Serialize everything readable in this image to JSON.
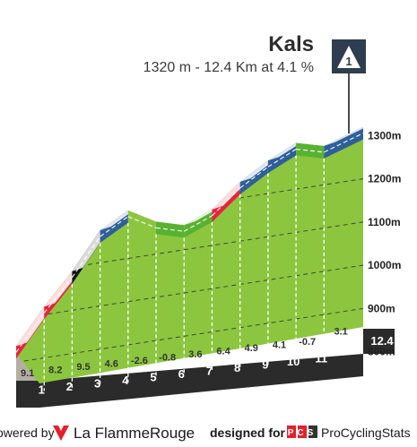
{
  "header": {
    "title": "Kals",
    "subtitle": "1320 m - 12.4 Km at 4.1 %",
    "category_badge": "1"
  },
  "footer": {
    "powered_by": "owered by",
    "brand": "La FlammeRouge",
    "designed_for": "designed for",
    "pcs_badge": "PCS",
    "pcs_name": "ProCyclingStats"
  },
  "colors": {
    "grade_light": "#8cc63f",
    "grade_moderate": "#2f5f99",
    "grade_green_stripe": "#59b132",
    "grade_hard": "#e8233b",
    "grade_very_hard": "#111111",
    "base_band": "#2b2b2b",
    "climb_fill": "#8cc63f"
  },
  "chart_data": {
    "type": "area",
    "title": "Kals",
    "xlabel": "",
    "ylabel": "",
    "x_unit": "km",
    "y_unit": "m",
    "ylim": [
      650,
      1340
    ],
    "y_ticks": [
      {
        "value": 800,
        "label": "800m"
      },
      {
        "value": 900,
        "label": "900m"
      },
      {
        "value": 1000,
        "label": "1000m"
      },
      {
        "value": 1100,
        "label": "1100m"
      },
      {
        "value": 1200,
        "label": "1200m"
      },
      {
        "value": 1300,
        "label": "1300m"
      }
    ],
    "km_markers": [
      "1",
      "2",
      "3",
      "4",
      "5",
      "6",
      "7",
      "8",
      "9",
      "10",
      "11"
    ],
    "end_label": "12.4",
    "profile": {
      "x": [
        0,
        1,
        2,
        3,
        4,
        5,
        6,
        7,
        8,
        9,
        10,
        11,
        12.4
      ],
      "y": [
        813,
        904,
        986,
        1081,
        1127,
        1101,
        1093,
        1129,
        1193,
        1242,
        1283,
        1276,
        1320
      ]
    },
    "segments": [
      {
        "from": 0,
        "to": 1,
        "grade": 9.1,
        "label": "9.1",
        "level": "hard"
      },
      {
        "from": 1,
        "to": 2,
        "grade": 8.2,
        "label": "8.2",
        "level": "hard"
      },
      {
        "from": 2,
        "to": 3,
        "grade": 9.5,
        "label": "9.5",
        "level": "very_hard"
      },
      {
        "from": 3,
        "to": 4,
        "grade": 4.6,
        "label": "4.6",
        "level": "moderate"
      },
      {
        "from": 4,
        "to": 5,
        "grade": -2.6,
        "label": "-2.6",
        "level": "light"
      },
      {
        "from": 5,
        "to": 6,
        "grade": -0.8,
        "label": "-0.8",
        "level": "green"
      },
      {
        "from": 6,
        "to": 7,
        "grade": 3.6,
        "label": "3.6",
        "level": "green"
      },
      {
        "from": 7,
        "to": 8,
        "grade": 6.4,
        "label": "6.4",
        "level": "hard"
      },
      {
        "from": 8,
        "to": 9,
        "grade": 4.9,
        "label": "4.9",
        "level": "moderate"
      },
      {
        "from": 9,
        "to": 10,
        "grade": 4.1,
        "label": "4.1",
        "level": "moderate"
      },
      {
        "from": 10,
        "to": 11,
        "grade": -0.7,
        "label": "-0.7",
        "level": "green"
      },
      {
        "from": 11,
        "to": 12.4,
        "grade": 3.1,
        "label": "3.1",
        "level": "moderate"
      }
    ],
    "grid": true
  }
}
